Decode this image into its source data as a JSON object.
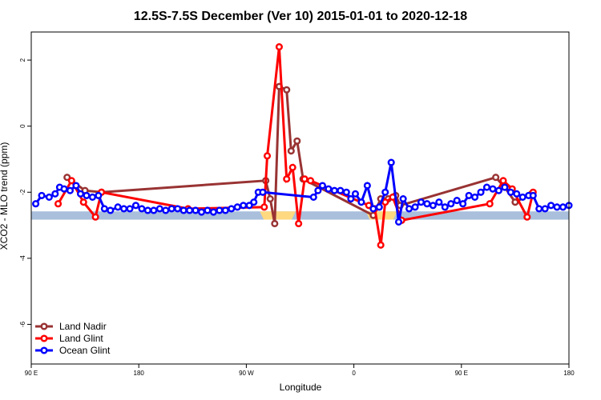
{
  "chart_data": {
    "type": "line",
    "title": "12.5S-7.5S December (Ver 10)   2015-01-01 to 2020-12-18",
    "xlabel": "Longitude",
    "ylabel": "XCO2 - MLO trend (ppm)",
    "xlim": [
      0,
      360
    ],
    "ylim": [
      -7.2,
      2.85
    ],
    "x_ticks": [
      {
        "value": 0,
        "label": "90 E"
      },
      {
        "value": 72,
        "label": "180"
      },
      {
        "value": 144,
        "label": "90 W"
      },
      {
        "value": 216,
        "label": "0"
      },
      {
        "value": 288,
        "label": "90 E"
      },
      {
        "value": 360,
        "label": "180"
      }
    ],
    "y_ticks": [
      {
        "value": 2,
        "label": "2"
      },
      {
        "value": 0,
        "label": "0"
      },
      {
        "value": -2,
        "label": "-2"
      },
      {
        "value": -4,
        "label": "-4"
      },
      {
        "value": -6,
        "label": "-6"
      }
    ],
    "legend_position": "bottom-left",
    "band": {
      "color": "#a9bfdc",
      "y_range": [
        -2.58,
        -2.83
      ]
    },
    "land_patches": [
      {
        "color": "#ffd980",
        "x": [
          153,
          177
        ]
      },
      {
        "color": "#ffd980",
        "x": [
          224,
          245
        ]
      }
    ],
    "series": [
      {
        "name": "Land Nadir",
        "color": "#993333",
        "points": [
          [
            24,
            -1.55
          ],
          [
            36,
            -1.95
          ],
          [
            47,
            -2.0
          ],
          [
            157,
            -1.65
          ],
          [
            160,
            -2.2
          ],
          [
            163,
            -2.95
          ],
          [
            166,
            1.2
          ],
          [
            171,
            1.1
          ],
          [
            174,
            -0.75
          ],
          [
            178,
            -0.45
          ],
          [
            182,
            -1.6
          ],
          [
            229,
            -2.7
          ],
          [
            234,
            -2.2
          ],
          [
            239,
            -2.2
          ],
          [
            244,
            -2.1
          ],
          [
            247,
            -2.4
          ],
          [
            311,
            -1.55
          ],
          [
            317,
            -1.85
          ],
          [
            324,
            -2.3
          ],
          [
            335,
            -2.05
          ]
        ]
      },
      {
        "name": "Land Glint",
        "color": "#ff0000",
        "points": [
          [
            18,
            -2.35
          ],
          [
            27,
            -1.65
          ],
          [
            35,
            -2.3
          ],
          [
            43,
            -2.75
          ],
          [
            47,
            -2.0
          ],
          [
            105,
            -2.5
          ],
          [
            156,
            -2.45
          ],
          [
            158,
            -0.9
          ],
          [
            166,
            2.4
          ],
          [
            171,
            -1.6
          ],
          [
            175,
            -1.25
          ],
          [
            179,
            -2.95
          ],
          [
            183,
            -1.6
          ],
          [
            187,
            -1.65
          ],
          [
            226,
            -2.4
          ],
          [
            230,
            -2.5
          ],
          [
            234,
            -3.6
          ],
          [
            237,
            -2.3
          ],
          [
            242,
            -2.15
          ],
          [
            248,
            -2.85
          ],
          [
            307,
            -2.35
          ],
          [
            316,
            -1.65
          ],
          [
            322,
            -1.9
          ],
          [
            332,
            -2.75
          ],
          [
            336,
            -2.0
          ]
        ]
      },
      {
        "name": "Ocean Glint",
        "color": "#0000ff",
        "points": [
          [
            3,
            -2.35
          ],
          [
            7,
            -2.1
          ],
          [
            12,
            -2.15
          ],
          [
            16,
            -2.05
          ],
          [
            19,
            -1.85
          ],
          [
            22,
            -1.9
          ],
          [
            26,
            -1.95
          ],
          [
            30,
            -1.8
          ],
          [
            33,
            -2.05
          ],
          [
            37,
            -2.1
          ],
          [
            41,
            -2.15
          ],
          [
            45,
            -2.1
          ],
          [
            49,
            -2.5
          ],
          [
            53,
            -2.55
          ],
          [
            58,
            -2.45
          ],
          [
            62,
            -2.5
          ],
          [
            66,
            -2.5
          ],
          [
            70,
            -2.4
          ],
          [
            74,
            -2.5
          ],
          [
            78,
            -2.55
          ],
          [
            82,
            -2.55
          ],
          [
            86,
            -2.5
          ],
          [
            90,
            -2.55
          ],
          [
            94,
            -2.5
          ],
          [
            98,
            -2.5
          ],
          [
            102,
            -2.55
          ],
          [
            106,
            -2.55
          ],
          [
            110,
            -2.55
          ],
          [
            114,
            -2.6
          ],
          [
            118,
            -2.55
          ],
          [
            122,
            -2.6
          ],
          [
            126,
            -2.55
          ],
          [
            130,
            -2.55
          ],
          [
            134,
            -2.5
          ],
          [
            138,
            -2.45
          ],
          [
            142,
            -2.4
          ],
          [
            146,
            -2.4
          ],
          [
            149,
            -2.3
          ],
          [
            152,
            -2.0
          ],
          [
            155,
            -2.0
          ],
          [
            189,
            -2.15
          ],
          [
            192,
            -1.95
          ],
          [
            195,
            -1.8
          ],
          [
            199,
            -1.9
          ],
          [
            203,
            -1.95
          ],
          [
            207,
            -1.95
          ],
          [
            211,
            -2.0
          ],
          [
            214,
            -2.2
          ],
          [
            217,
            -2.05
          ],
          [
            221,
            -2.3
          ],
          [
            225,
            -1.8
          ],
          [
            229,
            -2.5
          ],
          [
            233,
            -2.45
          ],
          [
            237,
            -2.0
          ],
          [
            241,
            -1.1
          ],
          [
            246,
            -2.9
          ],
          [
            249,
            -2.2
          ],
          [
            253,
            -2.5
          ],
          [
            257,
            -2.45
          ],
          [
            261,
            -2.3
          ],
          [
            265,
            -2.35
          ],
          [
            269,
            -2.4
          ],
          [
            273,
            -2.3
          ],
          [
            277,
            -2.45
          ],
          [
            281,
            -2.35
          ],
          [
            285,
            -2.25
          ],
          [
            289,
            -2.35
          ],
          [
            293,
            -2.1
          ],
          [
            297,
            -2.15
          ],
          [
            301,
            -2.0
          ],
          [
            305,
            -1.85
          ],
          [
            309,
            -1.9
          ],
          [
            313,
            -1.95
          ],
          [
            317,
            -1.85
          ],
          [
            321,
            -2.0
          ],
          [
            325,
            -2.05
          ],
          [
            329,
            -2.15
          ],
          [
            333,
            -2.1
          ],
          [
            336,
            -2.1
          ],
          [
            340,
            -2.5
          ],
          [
            344,
            -2.5
          ],
          [
            348,
            -2.4
          ],
          [
            352,
            -2.45
          ],
          [
            356,
            -2.45
          ],
          [
            360,
            -2.4
          ]
        ]
      }
    ]
  }
}
